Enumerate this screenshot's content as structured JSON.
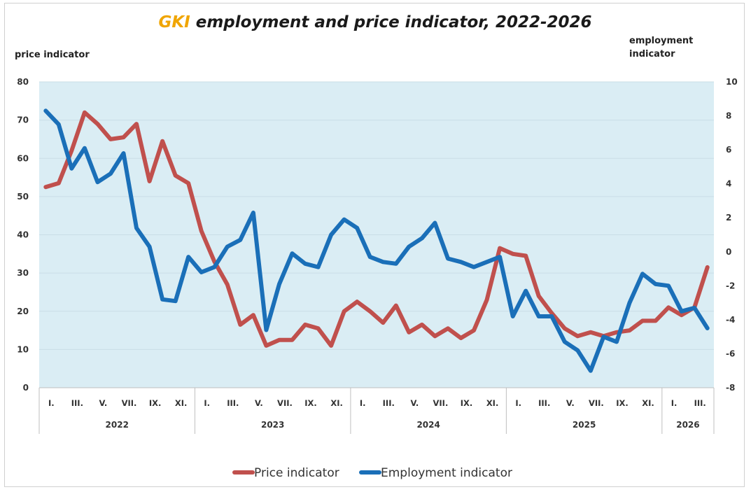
{
  "chart_data": {
    "type": "line",
    "title_highlight": "GKI",
    "title_rest": " employment and price indicator, 2022-2026",
    "y_left_label": "price indicator",
    "y_right_label_line1": "employment",
    "y_right_label_line2": "indicator",
    "y_left_range": [
      0,
      80
    ],
    "y_left_ticks": [
      0,
      10,
      20,
      30,
      40,
      50,
      60,
      70,
      80
    ],
    "y_right_range": [
      -8,
      10
    ],
    "y_right_ticks": [
      -8,
      -6,
      -4,
      -2,
      0,
      2,
      4,
      6,
      8,
      10
    ],
    "month_labels": [
      "I.",
      "III.",
      "V.",
      "VII.",
      "IX.",
      "XI."
    ],
    "month_labels_2026": [
      "I.",
      "III."
    ],
    "years": [
      "2022",
      "2023",
      "2024",
      "2025",
      "2026"
    ],
    "series": [
      {
        "name": "Price indicator",
        "color": "#c0504d",
        "axis": "left",
        "values": [
          52.5,
          53.5,
          62,
          72,
          69,
          65,
          65.5,
          69,
          54,
          64.5,
          55.5,
          53.5,
          41,
          33,
          27,
          16.5,
          19,
          11,
          12.5,
          12.5,
          16.5,
          15.5,
          11,
          20,
          22.5,
          20,
          17,
          21.5,
          14.5,
          16.5,
          13.5,
          15.5,
          13,
          15,
          23,
          36.5,
          35,
          34.5,
          24,
          19.5,
          15.5,
          13.5,
          14.5,
          13.5,
          14.5,
          15,
          17.5,
          17.5,
          21,
          19,
          21,
          31.5
        ]
      },
      {
        "name": "Employment indicator",
        "color": "#1a6fb8",
        "axis": "right",
        "values": [
          8.3,
          7.5,
          4.9,
          6.1,
          4.1,
          4.6,
          5.8,
          1.4,
          0.3,
          -2.8,
          -2.9,
          -0.3,
          -1.2,
          -0.9,
          0.3,
          0.7,
          2.3,
          -4.6,
          -1.9,
          -0.1,
          -0.7,
          -0.9,
          1.0,
          1.9,
          1.4,
          -0.3,
          -0.6,
          -0.7,
          0.3,
          0.8,
          1.7,
          -0.4,
          -0.6,
          -0.9,
          -0.6,
          -0.3,
          -3.8,
          -2.3,
          -3.8,
          -3.8,
          -5.3,
          -5.8,
          -7.0,
          -5.0,
          -5.3,
          -3.0,
          -1.3,
          -1.9,
          -2.0,
          -3.5,
          -3.3,
          -4.5
        ]
      }
    ],
    "grid": true,
    "legend_position": "bottom-center"
  }
}
